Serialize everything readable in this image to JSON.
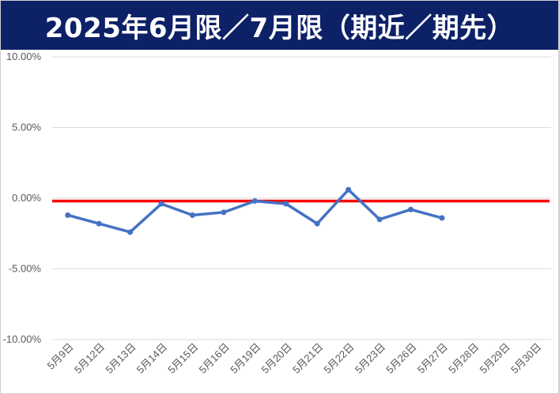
{
  "colors": {
    "title_bg": "#0d2167",
    "series_line": "#4472c4",
    "zero_line": "#ff0000",
    "gridline": "#d9d9d9"
  },
  "chart_data": {
    "type": "line",
    "title": "2025年6月限／7月限（期近／期先）",
    "xlabel": "",
    "ylabel": "",
    "ylim": [
      -10,
      10
    ],
    "y_unit": "%",
    "y_ticks": [
      "10.00%",
      "5.00%",
      "0.00%",
      "-5.00%",
      "-10.00%"
    ],
    "grid": true,
    "legend": "none",
    "categories": [
      "5月9日",
      "5月12日",
      "5月13日",
      "5月14日",
      "5月15日",
      "5月16日",
      "5月19日",
      "5月20日",
      "5月21日",
      "5月22日",
      "5月23日",
      "5月26日",
      "5月27日",
      "5月28日",
      "5月29日",
      "5月30日"
    ],
    "series": [
      {
        "values": [
          -1.2,
          -1.8,
          -2.4,
          -0.4,
          -1.2,
          -1.0,
          -0.2,
          -0.4,
          -1.8,
          0.6,
          -1.5,
          -0.8,
          -1.4,
          null,
          null,
          null
        ]
      }
    ],
    "reference_line": {
      "value": -0.2
    }
  }
}
